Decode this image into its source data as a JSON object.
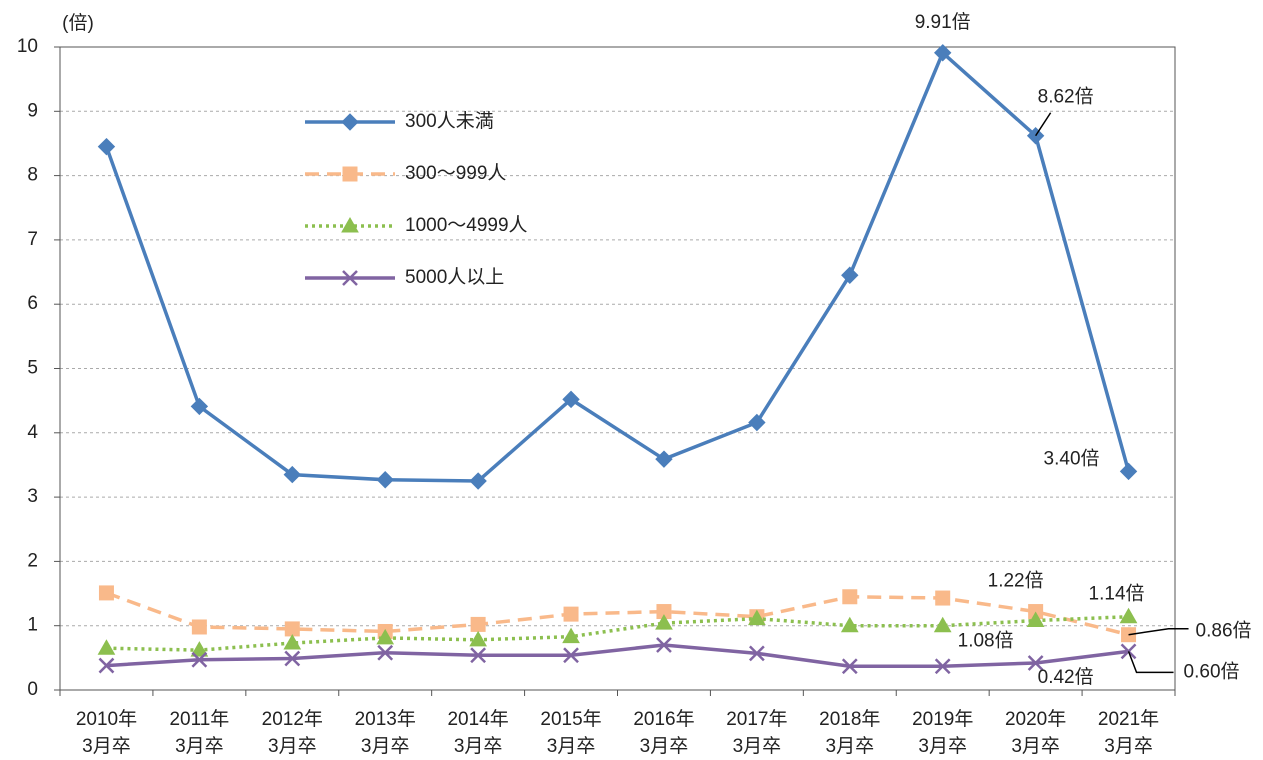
{
  "chart_data": {
    "type": "line",
    "y_label": "(倍)",
    "categories": [
      [
        "2010年",
        "3月卒"
      ],
      [
        "2011年",
        "3月卒"
      ],
      [
        "2012年",
        "3月卒"
      ],
      [
        "2013年",
        "3月卒"
      ],
      [
        "2014年",
        "3月卒"
      ],
      [
        "2015年",
        "3月卒"
      ],
      [
        "2016年",
        "3月卒"
      ],
      [
        "2017年",
        "3月卒"
      ],
      [
        "2018年",
        "3月卒"
      ],
      [
        "2019年",
        "3月卒"
      ],
      [
        "2020年",
        "3月卒"
      ],
      [
        "2021年",
        "3月卒"
      ]
    ],
    "series": [
      {
        "name": "300人未満",
        "color": "#4a7ebb",
        "marker": "diamond",
        "style": "solid",
        "values": [
          8.45,
          4.41,
          3.35,
          3.27,
          3.25,
          4.52,
          3.59,
          4.16,
          6.45,
          9.91,
          8.62,
          3.4
        ],
        "value_labels": [
          null,
          null,
          null,
          null,
          null,
          null,
          null,
          null,
          null,
          "9.91倍",
          "8.62倍",
          "3.40倍"
        ]
      },
      {
        "name": "300～999人",
        "color": "#f9b98a",
        "marker": "square",
        "style": "dashed",
        "values": [
          1.51,
          0.98,
          0.95,
          0.91,
          1.02,
          1.18,
          1.22,
          1.14,
          1.45,
          1.43,
          1.22,
          0.86
        ],
        "value_labels": [
          null,
          null,
          null,
          null,
          null,
          null,
          null,
          null,
          null,
          null,
          "1.22倍",
          "0.86倍"
        ]
      },
      {
        "name": "1000～4999人",
        "color": "#8cbf4f",
        "marker": "triangle",
        "style": "dotted",
        "values": [
          0.65,
          0.62,
          0.73,
          0.81,
          0.78,
          0.83,
          1.04,
          1.11,
          1.0,
          1.0,
          1.08,
          1.14
        ],
        "value_labels": [
          null,
          null,
          null,
          null,
          null,
          null,
          null,
          null,
          null,
          null,
          "1.08倍",
          "1.14倍"
        ]
      },
      {
        "name": "5000人以上",
        "color": "#8064a2",
        "marker": "x",
        "style": "solid",
        "values": [
          0.38,
          0.47,
          0.49,
          0.58,
          0.54,
          0.54,
          0.7,
          0.57,
          0.37,
          0.37,
          0.42,
          0.6
        ],
        "value_labels": [
          null,
          null,
          null,
          null,
          null,
          null,
          null,
          null,
          null,
          null,
          "0.42倍",
          "0.60倍"
        ]
      }
    ],
    "ylim": [
      0,
      10
    ],
    "yticks": [
      0,
      1,
      2,
      3,
      4,
      5,
      6,
      7,
      8,
      9,
      10
    ],
    "grid": true,
    "legend": "upper left"
  }
}
